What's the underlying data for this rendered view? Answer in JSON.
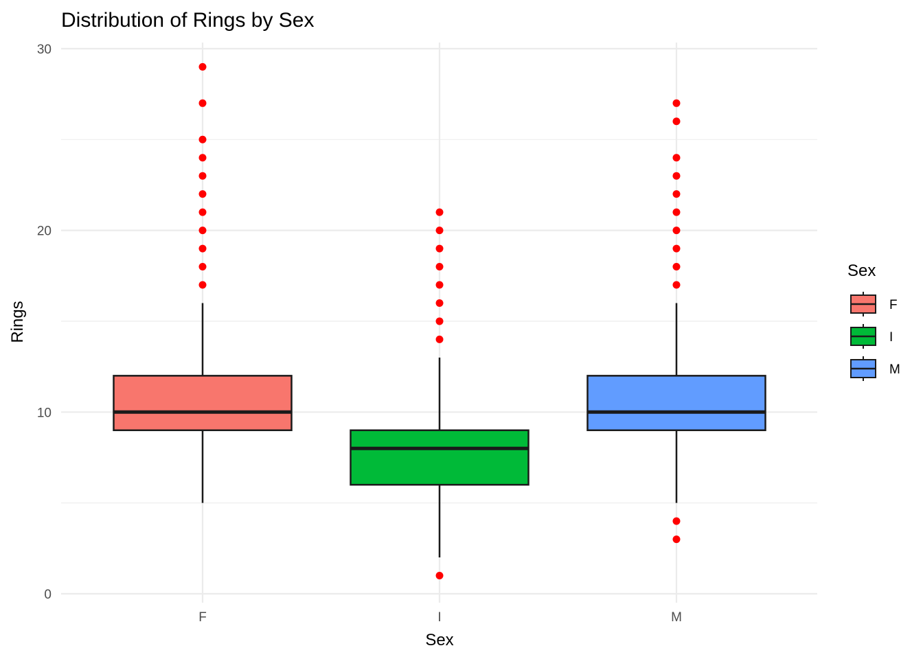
{
  "chart_data": {
    "type": "boxplot",
    "title": "Distribution of Rings by Sex",
    "xlabel": "Sex",
    "ylabel": "Rings",
    "ylim": [
      0,
      30
    ],
    "yticks": [
      0,
      10,
      20,
      30
    ],
    "grid": true,
    "legend": {
      "title": "Sex",
      "position": "right"
    },
    "categories": [
      "F",
      "I",
      "M"
    ],
    "colors": [
      "#F8766D",
      "#00BA38",
      "#619CFF"
    ],
    "outlier_color": "#FF0000",
    "boxes": [
      {
        "name": "F",
        "whisker_low": 5,
        "q1": 9,
        "median": 10,
        "q3": 12,
        "whisker_high": 16,
        "outliers": [
          17,
          18,
          19,
          20,
          21,
          22,
          23,
          24,
          25,
          27,
          29
        ]
      },
      {
        "name": "I",
        "whisker_low": 2,
        "q1": 6,
        "median": 8,
        "q3": 9,
        "whisker_high": 13,
        "outliers": [
          1,
          14,
          15,
          16,
          17,
          18,
          19,
          20,
          21
        ]
      },
      {
        "name": "M",
        "whisker_low": 5,
        "q1": 9,
        "median": 10,
        "q3": 12,
        "whisker_high": 16,
        "outliers": [
          3,
          4,
          17,
          18,
          19,
          20,
          21,
          22,
          23,
          24,
          26,
          27
        ]
      }
    ]
  }
}
